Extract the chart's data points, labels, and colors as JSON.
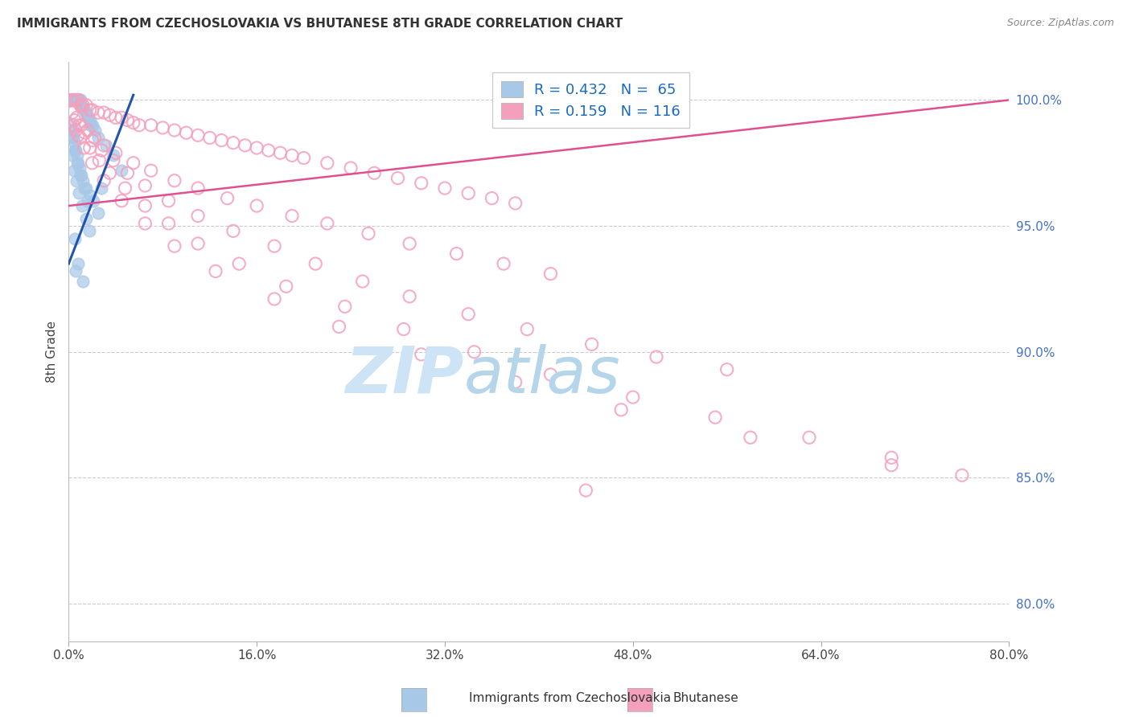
{
  "title": "IMMIGRANTS FROM CZECHOSLOVAKIA VS BHUTANESE 8TH GRADE CORRELATION CHART",
  "source": "Source: ZipAtlas.com",
  "ylabel_label": "8th Grade",
  "yticks": [
    80.0,
    85.0,
    90.0,
    95.0,
    100.0
  ],
  "xticks": [
    0.0,
    16.0,
    32.0,
    48.0,
    64.0,
    80.0
  ],
  "xlim": [
    0.0,
    80.0
  ],
  "ylim": [
    78.5,
    101.5
  ],
  "R_blue": 0.432,
  "N_blue": 65,
  "R_pink": 0.159,
  "N_pink": 116,
  "blue_color": "#a8c8e8",
  "blue_fill_color": "#a8c8e8",
  "pink_color": "#f4a0bc",
  "blue_line_color": "#2255aa",
  "pink_line_color": "#e05090",
  "legend_label_blue": "Immigrants from Czechoslovakia",
  "legend_label_pink": "Bhutanese",
  "blue_line_x0": 0.0,
  "blue_line_y0": 93.5,
  "blue_line_x1": 5.5,
  "blue_line_y1": 100.2,
  "pink_line_x0": 0.0,
  "pink_line_y0": 95.8,
  "pink_line_x1": 80.0,
  "pink_line_y1": 100.0,
  "blue_scatter_x": [
    0.15,
    0.2,
    0.25,
    0.3,
    0.35,
    0.4,
    0.45,
    0.5,
    0.55,
    0.6,
    0.65,
    0.7,
    0.75,
    0.8,
    0.85,
    0.9,
    0.95,
    1.0,
    1.1,
    1.2,
    1.3,
    1.4,
    1.5,
    1.6,
    1.7,
    1.8,
    1.9,
    2.0,
    2.2,
    2.5,
    0.2,
    0.3,
    0.4,
    0.5,
    0.6,
    0.7,
    0.8,
    0.9,
    1.0,
    1.2,
    1.5,
    1.8,
    2.1,
    0.35,
    0.55,
    0.75,
    1.05,
    1.35,
    1.65,
    2.5,
    0.25,
    0.45,
    0.65,
    0.85,
    1.15,
    1.45,
    1.75,
    3.2,
    3.8,
    4.5,
    0.5,
    0.8,
    1.2,
    0.6,
    2.8
  ],
  "blue_scatter_y": [
    100.0,
    100.0,
    100.0,
    100.0,
    100.0,
    100.0,
    100.0,
    100.0,
    100.0,
    100.0,
    100.0,
    100.0,
    100.0,
    100.0,
    100.0,
    100.0,
    100.0,
    100.0,
    99.7,
    99.7,
    99.7,
    99.5,
    99.5,
    99.3,
    99.3,
    99.2,
    99.0,
    99.0,
    98.8,
    98.5,
    99.0,
    98.8,
    98.5,
    98.3,
    98.0,
    97.8,
    97.5,
    97.3,
    97.0,
    96.8,
    96.5,
    96.2,
    96.0,
    98.5,
    98.0,
    97.5,
    97.0,
    96.5,
    96.0,
    95.5,
    97.8,
    97.2,
    96.8,
    96.3,
    95.8,
    95.3,
    94.8,
    98.2,
    97.8,
    97.2,
    94.5,
    93.5,
    92.8,
    93.2,
    96.5
  ],
  "pink_scatter_x": [
    0.2,
    0.4,
    0.6,
    0.8,
    1.0,
    1.2,
    1.5,
    1.8,
    2.0,
    2.5,
    3.0,
    3.5,
    4.0,
    4.5,
    5.0,
    5.5,
    6.0,
    7.0,
    8.0,
    9.0,
    10.0,
    11.0,
    12.0,
    13.0,
    14.0,
    15.0,
    16.0,
    17.0,
    18.0,
    19.0,
    20.0,
    22.0,
    24.0,
    26.0,
    28.0,
    30.0,
    32.0,
    34.0,
    36.0,
    38.0,
    0.3,
    0.7,
    1.1,
    1.6,
    2.2,
    3.0,
    4.0,
    5.5,
    7.0,
    9.0,
    11.0,
    13.5,
    16.0,
    19.0,
    22.0,
    25.5,
    29.0,
    33.0,
    37.0,
    41.0,
    0.5,
    0.9,
    1.4,
    2.0,
    2.8,
    3.8,
    5.0,
    6.5,
    8.5,
    11.0,
    14.0,
    17.5,
    21.0,
    25.0,
    29.0,
    34.0,
    39.0,
    44.5,
    50.0,
    56.0,
    0.6,
    1.0,
    1.8,
    2.6,
    3.5,
    4.8,
    6.5,
    8.5,
    11.0,
    14.5,
    18.5,
    23.5,
    28.5,
    34.5,
    41.0,
    48.0,
    55.0,
    63.0,
    70.0,
    76.0,
    0.4,
    0.8,
    1.3,
    2.0,
    3.0,
    4.5,
    6.5,
    9.0,
    12.5,
    17.5,
    23.0,
    30.0,
    38.0,
    47.0,
    58.0,
    70.0
  ],
  "pink_scatter_y": [
    100.0,
    100.0,
    100.0,
    100.0,
    99.8,
    99.8,
    99.8,
    99.6,
    99.6,
    99.5,
    99.5,
    99.4,
    99.3,
    99.3,
    99.2,
    99.1,
    99.0,
    99.0,
    98.9,
    98.8,
    98.7,
    98.6,
    98.5,
    98.4,
    98.3,
    98.2,
    98.1,
    98.0,
    97.9,
    97.8,
    97.7,
    97.5,
    97.3,
    97.1,
    96.9,
    96.7,
    96.5,
    96.3,
    96.1,
    95.9,
    99.5,
    99.3,
    99.0,
    98.8,
    98.5,
    98.2,
    97.9,
    97.5,
    97.2,
    96.8,
    96.5,
    96.1,
    95.8,
    95.4,
    95.1,
    94.7,
    94.3,
    93.9,
    93.5,
    93.1,
    99.2,
    99.0,
    98.7,
    98.4,
    98.0,
    97.6,
    97.1,
    96.6,
    96.0,
    95.4,
    94.8,
    94.2,
    93.5,
    92.8,
    92.2,
    91.5,
    90.9,
    90.3,
    89.8,
    89.3,
    98.8,
    98.5,
    98.1,
    97.6,
    97.1,
    96.5,
    95.8,
    95.1,
    94.3,
    93.5,
    92.6,
    91.8,
    90.9,
    90.0,
    89.1,
    88.2,
    87.4,
    86.6,
    85.8,
    85.1,
    99.0,
    98.6,
    98.1,
    97.5,
    96.8,
    96.0,
    95.1,
    94.2,
    93.2,
    92.1,
    91.0,
    89.9,
    88.8,
    87.7,
    86.6,
    85.5
  ],
  "pink_outlier_x": [
    44.0
  ],
  "pink_outlier_y": [
    84.5
  ]
}
